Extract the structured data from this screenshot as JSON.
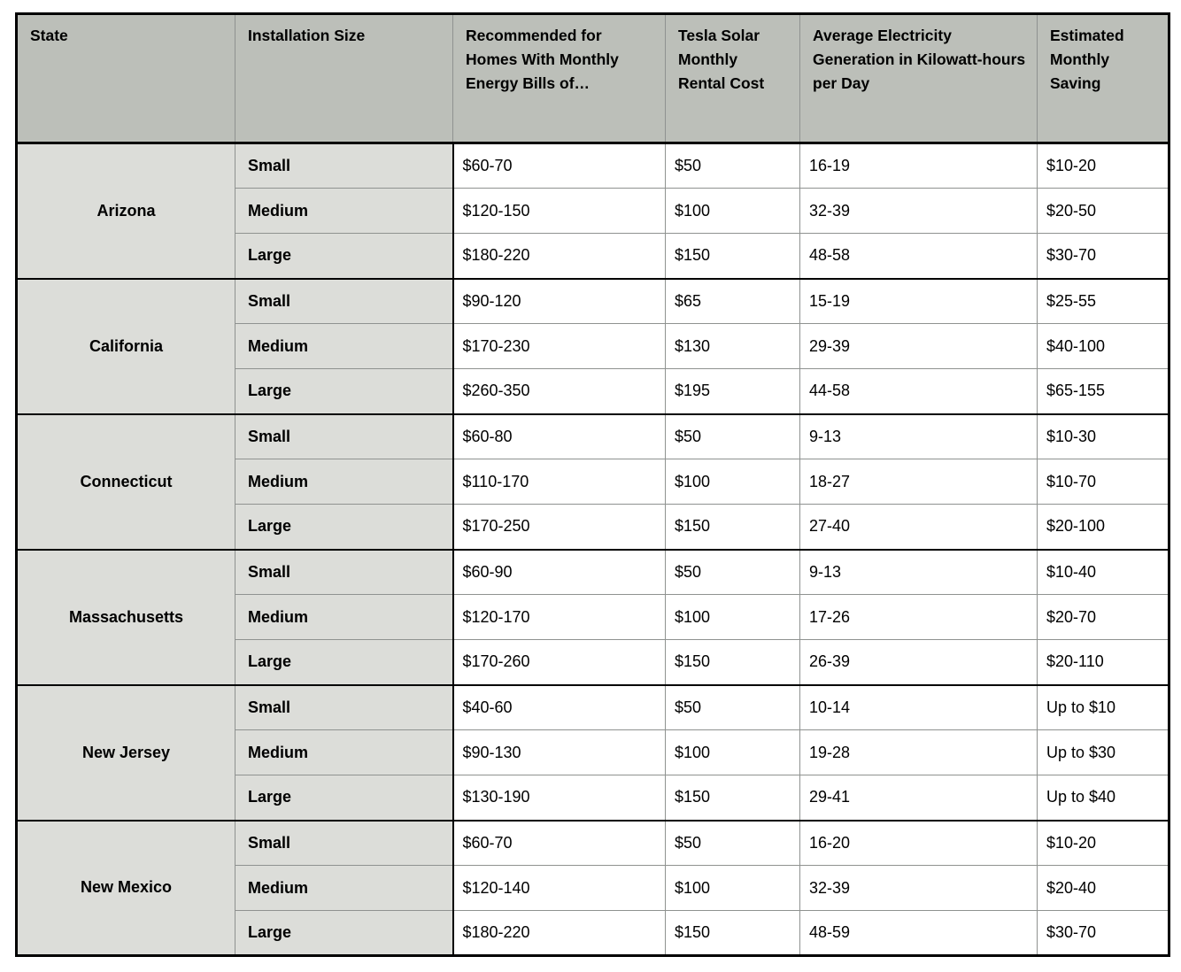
{
  "colors": {
    "header_bg": "#bcbfb9",
    "label_bg": "#dcddd9",
    "cell_bg": "#ffffff",
    "line": "#8f9290",
    "frame": "#000000",
    "text": "#000000"
  },
  "table": {
    "columns": {
      "state": "State",
      "size": "Installation Size",
      "bills": "Recommended for Homes With Monthly Energy Bills of…",
      "rental": "Tesla Solar Monthly Rental Cost",
      "generation": "Average Electricity Generation in Kilowatt-hours per Day",
      "saving": "Estimated Monthly Saving"
    },
    "groups": [
      {
        "state": "Arizona",
        "rows": [
          {
            "size": "Small",
            "bills": "$60-70",
            "rental": "$50",
            "generation": "16-19",
            "saving": "$10-20"
          },
          {
            "size": "Medium",
            "bills": "$120-150",
            "rental": "$100",
            "generation": "32-39",
            "saving": "$20-50"
          },
          {
            "size": "Large",
            "bills": "$180-220",
            "rental": "$150",
            "generation": "48-58",
            "saving": "$30-70"
          }
        ]
      },
      {
        "state": "California",
        "rows": [
          {
            "size": "Small",
            "bills": "$90-120",
            "rental": "$65",
            "generation": "15-19",
            "saving": "$25-55"
          },
          {
            "size": "Medium",
            "bills": "$170-230",
            "rental": "$130",
            "generation": "29-39",
            "saving": "$40-100"
          },
          {
            "size": "Large",
            "bills": "$260-350",
            "rental": "$195",
            "generation": "44-58",
            "saving": "$65-155"
          }
        ]
      },
      {
        "state": "Connecticut",
        "rows": [
          {
            "size": "Small",
            "bills": "$60-80",
            "rental": "$50",
            "generation": "9-13",
            "saving": "$10-30"
          },
          {
            "size": "Medium",
            "bills": "$110-170",
            "rental": "$100",
            "generation": "18-27",
            "saving": "$10-70"
          },
          {
            "size": "Large",
            "bills": "$170-250",
            "rental": "$150",
            "generation": "27-40",
            "saving": "$20-100"
          }
        ]
      },
      {
        "state": "Massachusetts",
        "rows": [
          {
            "size": "Small",
            "bills": "$60-90",
            "rental": "$50",
            "generation": "9-13",
            "saving": "$10-40"
          },
          {
            "size": "Medium",
            "bills": "$120-170",
            "rental": "$100",
            "generation": "17-26",
            "saving": "$20-70"
          },
          {
            "size": "Large",
            "bills": "$170-260",
            "rental": "$150",
            "generation": "26-39",
            "saving": "$20-110"
          }
        ]
      },
      {
        "state": "New Jersey",
        "rows": [
          {
            "size": "Small",
            "bills": "$40-60",
            "rental": "$50",
            "generation": "10-14",
            "saving": "Up to $10"
          },
          {
            "size": "Medium",
            "bills": "$90-130",
            "rental": "$100",
            "generation": "19-28",
            "saving": "Up to $30"
          },
          {
            "size": "Large",
            "bills": "$130-190",
            "rental": "$150",
            "generation": "29-41",
            "saving": "Up to $40"
          }
        ]
      },
      {
        "state": "New Mexico",
        "rows": [
          {
            "size": "Small",
            "bills": "$60-70",
            "rental": "$50",
            "generation": "16-20",
            "saving": "$10-20"
          },
          {
            "size": "Medium",
            "bills": "$120-140",
            "rental": "$100",
            "generation": "32-39",
            "saving": "$20-40"
          },
          {
            "size": "Large",
            "bills": "$180-220",
            "rental": "$150",
            "generation": "48-59",
            "saving": "$30-70"
          }
        ]
      }
    ]
  }
}
